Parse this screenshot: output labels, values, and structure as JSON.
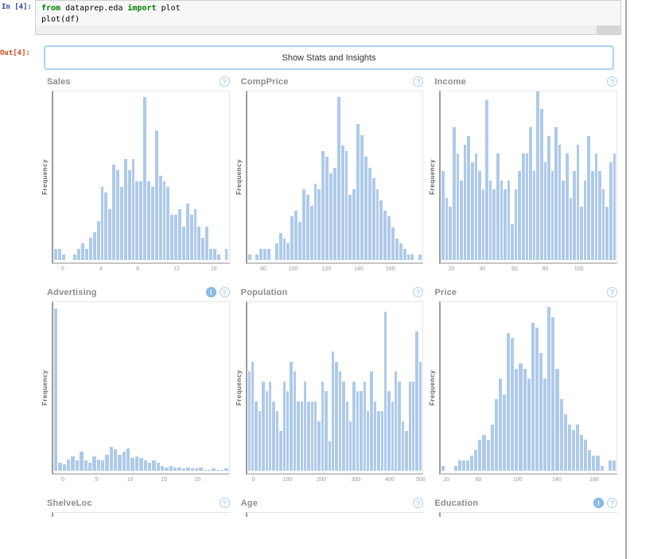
{
  "code_cell": {
    "in_label": "In [4]:",
    "tokens": [
      {
        "type": "kw",
        "text": "from"
      },
      {
        "type": "plain",
        "text": " dataprep.eda "
      },
      {
        "type": "kw",
        "text": "import"
      },
      {
        "type": "plain",
        "text": " plot\nplot(df)"
      }
    ]
  },
  "output_cell": {
    "out_label": "Out[4]:",
    "button_label": "Show Stats and Insights"
  },
  "icons": {
    "help_glyph": "?",
    "insight_glyph": "!"
  },
  "colors": {
    "bar": "#aecae9",
    "keyword_green": "#008000",
    "in_prompt_blue": "#303f9f",
    "out_prompt_red": "#d84315",
    "title_gray": "#8c8c8c",
    "icon_blue": "#aecfec",
    "button_border_blue": "#abd2ee"
  },
  "chart_data": [
    {
      "type": "bar",
      "title": "Sales",
      "ylabel": "Frequency",
      "xlabel": "",
      "xticks": [
        "0",
        "4",
        "8",
        "12",
        "16"
      ],
      "xtick_pos": [
        0.062,
        0.276,
        0.484,
        0.702,
        0.911
      ],
      "ymax": 30,
      "values": [
        2,
        2,
        1,
        0,
        0,
        1,
        2,
        3,
        2,
        4,
        5,
        7,
        13,
        12,
        9,
        17,
        16,
        13,
        18,
        16,
        18,
        14,
        14,
        29,
        14,
        13,
        23,
        15,
        14,
        13,
        8,
        8,
        9,
        6,
        10,
        8,
        9,
        6,
        4,
        6,
        2,
        2,
        1,
        0,
        2
      ],
      "legend": "none",
      "grid": "off"
    },
    {
      "type": "bar",
      "title": "CompPrice",
      "ylabel": "Frequency",
      "xlabel": "",
      "xticks": [
        "80",
        "100",
        "120",
        "140",
        "160"
      ],
      "xtick_pos": [
        0.1,
        0.268,
        0.455,
        0.636,
        0.814
      ],
      "ymax": 31,
      "values": [
        1,
        0,
        1,
        2,
        2,
        2,
        0,
        3,
        5,
        4,
        3,
        8,
        9,
        7,
        13,
        12,
        10,
        14,
        13,
        20,
        19,
        16,
        17,
        30,
        21,
        20,
        12,
        13,
        25,
        23,
        19,
        17,
        15,
        13,
        11,
        9,
        8,
        6,
        4,
        3,
        2,
        1,
        1,
        0,
        1
      ],
      "legend": "none",
      "grid": "off"
    },
    {
      "type": "bar",
      "title": "Income",
      "ylabel": "Frequency",
      "xlabel": "",
      "xticks": [
        "20",
        "40",
        "60",
        "80",
        "100"
      ],
      "xtick_pos": [
        0.068,
        0.243,
        0.423,
        0.595,
        0.784
      ],
      "ymax": 19,
      "values": [
        10,
        7,
        6,
        15,
        12,
        9,
        13,
        14,
        11,
        12,
        10,
        8,
        18,
        9,
        8,
        12,
        9,
        8,
        9,
        4,
        8,
        10,
        12,
        12,
        15,
        10,
        19,
        17,
        11,
        14,
        10,
        15,
        13,
        9,
        12,
        7,
        10,
        13,
        6,
        9,
        14,
        10,
        12,
        10,
        8,
        6,
        11,
        12
      ],
      "legend": "none",
      "grid": "off"
    },
    {
      "type": "bar",
      "title": "Advertising",
      "ylabel": "Frequency",
      "xlabel": "",
      "xticks": [
        "0",
        "5",
        "10",
        "15",
        "20"
      ],
      "xtick_pos": [
        0.063,
        0.252,
        0.441,
        0.631,
        0.82
      ],
      "ymax": 150,
      "values": [
        144,
        7,
        6,
        10,
        13,
        9,
        17,
        9,
        7,
        13,
        10,
        9,
        14,
        21,
        19,
        14,
        17,
        20,
        11,
        13,
        11,
        9,
        7,
        9,
        7,
        4,
        3,
        4,
        3,
        3,
        2,
        3,
        2,
        2,
        3,
        1,
        1,
        2,
        1,
        1,
        2
      ],
      "legend": "none",
      "grid": "off"
    },
    {
      "type": "bar",
      "title": "Population",
      "ylabel": "Frequency",
      "xlabel": "",
      "xticks": [
        "0",
        "100",
        "200",
        "300",
        "400",
        "500"
      ],
      "xtick_pos": [
        0.045,
        0.236,
        0.427,
        0.62,
        0.81,
        0.985
      ],
      "ymax": 17,
      "values": [
        10,
        11,
        7,
        6,
        9,
        8,
        9,
        7,
        6,
        4,
        9,
        8,
        11,
        10,
        7,
        7,
        9,
        7,
        7,
        7,
        5,
        9,
        8,
        3,
        12,
        11,
        10,
        9,
        7,
        5,
        9,
        8,
        8,
        9,
        6,
        10,
        7,
        6,
        6,
        16,
        8,
        7,
        10,
        9,
        5,
        4,
        9,
        9,
        14,
        11
      ],
      "legend": "none",
      "grid": "off"
    },
    {
      "type": "bar",
      "title": "Price",
      "ylabel": "Frequency",
      "xlabel": "",
      "xticks": [
        "20",
        "60",
        "100",
        "140",
        "180"
      ],
      "xtick_pos": [
        0.04,
        0.22,
        0.44,
        0.66,
        0.87
      ],
      "ymax": 33,
      "values": [
        1,
        0,
        0,
        1,
        2,
        2,
        2,
        3,
        4,
        6,
        7,
        6,
        9,
        14,
        18,
        15,
        27,
        26,
        20,
        21,
        20,
        18,
        29,
        28,
        23,
        18,
        32,
        30,
        20,
        14,
        11,
        9,
        8,
        9,
        7,
        6,
        4,
        3,
        3,
        1,
        0,
        2,
        2
      ],
      "legend": "none",
      "grid": "off"
    },
    {
      "type": "bar",
      "title": "ShelveLoc",
      "partial": true
    },
    {
      "type": "bar",
      "title": "Age",
      "partial": true
    },
    {
      "type": "bar",
      "title": "Education",
      "partial": true
    }
  ]
}
